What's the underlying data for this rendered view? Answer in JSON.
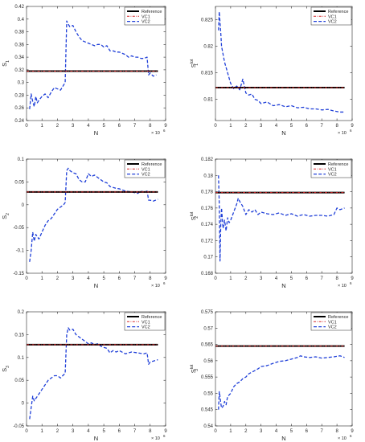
{
  "figure": {
    "panels": [
      {
        "xlabel": "N",
        "ylabel": "S",
        "ylabel_sub": "1",
        "ylabel_sup": "",
        "x_multiplier": "× 10",
        "x_exponent": "6"
      },
      {
        "xlabel": "N",
        "ylabel": "S",
        "ylabel_sub": "1",
        "ylabel_sup": "tot",
        "x_multiplier": "× 10",
        "x_exponent": "6"
      },
      {
        "xlabel": "N",
        "ylabel": "S",
        "ylabel_sub": "2",
        "ylabel_sup": "",
        "x_multiplier": "× 10",
        "x_exponent": "6"
      },
      {
        "xlabel": "N",
        "ylabel": "S",
        "ylabel_sub": "2",
        "ylabel_sup": "tot",
        "x_multiplier": "× 10",
        "x_exponent": "6"
      },
      {
        "xlabel": "N",
        "ylabel": "S",
        "ylabel_sub": "3",
        "ylabel_sup": "",
        "x_multiplier": "× 10",
        "x_exponent": "6"
      },
      {
        "xlabel": "N",
        "ylabel": "S",
        "ylabel_sub": "3",
        "ylabel_sup": "tot",
        "x_multiplier": "× 10",
        "x_exponent": "6"
      }
    ],
    "legend_labels": [
      "Reference",
      "VC1",
      "VC2"
    ],
    "colors": {
      "reference": "#000000",
      "vc1": "#d62728",
      "vc2": "#1f3fd8",
      "axis": "#262626"
    }
  },
  "chart_data": [
    {
      "type": "line",
      "xlabel": "N",
      "ylabel": "S1",
      "xlim": [
        0,
        9
      ],
      "ylim": [
        0.24,
        0.42
      ],
      "xticks": [
        0,
        1,
        2,
        3,
        4,
        5,
        6,
        7,
        8,
        9
      ],
      "yticks": [
        0.24,
        0.26,
        0.28,
        0.3,
        0.32,
        0.34,
        0.36,
        0.38,
        0.4,
        0.42
      ],
      "ytick_labels": [
        "0.24",
        "0.26",
        "0.28",
        "0.3",
        "0.32",
        "0.34",
        "0.36",
        "0.38",
        "0.4",
        "0.42"
      ],
      "legend": "top-right",
      "series": [
        {
          "name": "Reference",
          "style": "solid",
          "x": [
            0,
            8.5
          ],
          "y": [
            0.318,
            0.318
          ]
        },
        {
          "name": "VC1",
          "style": "dashdot",
          "x": [
            0,
            8.5
          ],
          "y": [
            0.318,
            0.318
          ]
        },
        {
          "name": "VC2",
          "style": "dashed",
          "x": [
            0.2,
            0.3,
            0.4,
            0.5,
            0.6,
            0.7,
            0.8,
            1.0,
            1.2,
            1.4,
            1.6,
            1.8,
            2.0,
            2.2,
            2.4,
            2.5,
            2.6,
            2.7,
            2.8,
            3.0,
            3.2,
            3.4,
            3.6,
            3.8,
            4.0,
            4.2,
            4.4,
            4.6,
            4.8,
            5.0,
            5.2,
            5.4,
            5.6,
            5.8,
            6.0,
            6.2,
            6.4,
            6.6,
            6.8,
            7.0,
            7.2,
            7.4,
            7.6,
            7.8,
            7.9,
            8.0,
            8.2,
            8.4
          ],
          "y": [
            0.258,
            0.282,
            0.27,
            0.262,
            0.278,
            0.268,
            0.272,
            0.278,
            0.282,
            0.276,
            0.285,
            0.292,
            0.29,
            0.288,
            0.296,
            0.3,
            0.397,
            0.392,
            0.388,
            0.39,
            0.38,
            0.372,
            0.366,
            0.364,
            0.362,
            0.36,
            0.358,
            0.36,
            0.36,
            0.356,
            0.358,
            0.35,
            0.35,
            0.348,
            0.348,
            0.346,
            0.344,
            0.34,
            0.342,
            0.34,
            0.34,
            0.338,
            0.338,
            0.34,
            0.312,
            0.315,
            0.31,
            0.312
          ]
        }
      ]
    },
    {
      "type": "line",
      "xlabel": "N",
      "ylabel": "S1 tot",
      "xlim": [
        0,
        9
      ],
      "ylim": [
        0.806,
        0.8275
      ],
      "xticks": [
        0,
        1,
        2,
        3,
        4,
        5,
        6,
        7,
        8,
        9
      ],
      "yticks": [
        0.81,
        0.815,
        0.82,
        0.825
      ],
      "ytick_labels": [
        "0.81",
        "0.815",
        "0.82",
        "0.825"
      ],
      "legend": "top-right",
      "series": [
        {
          "name": "Reference",
          "style": "solid",
          "x": [
            0,
            8.5
          ],
          "y": [
            0.8122,
            0.8122
          ]
        },
        {
          "name": "VC1",
          "style": "dashdot",
          "x": [
            0,
            8.5
          ],
          "y": [
            0.8122,
            0.8122
          ]
        },
        {
          "name": "VC2",
          "style": "dashed",
          "x": [
            0.2,
            0.25,
            0.3,
            0.35,
            0.4,
            0.5,
            0.6,
            0.7,
            0.8,
            0.9,
            1.0,
            1.2,
            1.4,
            1.6,
            1.8,
            2.0,
            2.2,
            2.4,
            2.6,
            2.8,
            3.0,
            3.4,
            3.8,
            4.2,
            4.6,
            5.0,
            5.4,
            5.8,
            6.2,
            6.6,
            7.0,
            7.4,
            7.8,
            8.2,
            8.5
          ],
          "y": [
            0.823,
            0.8265,
            0.8245,
            0.8225,
            0.82,
            0.8185,
            0.817,
            0.816,
            0.815,
            0.814,
            0.813,
            0.812,
            0.8125,
            0.8118,
            0.8138,
            0.8112,
            0.8108,
            0.811,
            0.81,
            0.8098,
            0.8092,
            0.8095,
            0.8088,
            0.809,
            0.8086,
            0.8088,
            0.8084,
            0.8085,
            0.8082,
            0.8082,
            0.808,
            0.8081,
            0.8078,
            0.8076,
            0.8076
          ]
        }
      ]
    },
    {
      "type": "line",
      "xlabel": "N",
      "ylabel": "S2",
      "xlim": [
        0,
        9
      ],
      "ylim": [
        -0.15,
        0.1
      ],
      "xticks": [
        0,
        1,
        2,
        3,
        4,
        5,
        6,
        7,
        8,
        9
      ],
      "yticks": [
        -0.15,
        -0.1,
        -0.05,
        0,
        0.05,
        0.1
      ],
      "ytick_labels": [
        "-0.15",
        "-0.1",
        "-0.05",
        "0",
        "0.05",
        "0.1"
      ],
      "legend": "top-right",
      "series": [
        {
          "name": "Reference",
          "style": "solid",
          "x": [
            0,
            8.5
          ],
          "y": [
            0.028,
            0.028
          ]
        },
        {
          "name": "VC1",
          "style": "dashdot",
          "x": [
            0,
            8.5
          ],
          "y": [
            0.028,
            0.028
          ]
        },
        {
          "name": "VC2",
          "style": "dashed",
          "x": [
            0.2,
            0.3,
            0.4,
            0.5,
            0.6,
            0.8,
            1.0,
            1.2,
            1.4,
            1.6,
            1.8,
            2.0,
            2.2,
            2.4,
            2.5,
            2.6,
            2.7,
            2.8,
            3.0,
            3.2,
            3.4,
            3.6,
            3.8,
            4.0,
            4.2,
            4.4,
            4.6,
            4.8,
            5.0,
            5.2,
            5.4,
            5.6,
            5.8,
            6.0,
            6.4,
            6.8,
            7.2,
            7.4,
            7.6,
            7.8,
            7.9,
            8.0,
            8.2,
            8.5
          ],
          "y": [
            -0.125,
            -0.1,
            -0.06,
            -0.08,
            -0.065,
            -0.075,
            -0.06,
            -0.045,
            -0.035,
            -0.03,
            -0.02,
            -0.01,
            -0.005,
            0.0,
            0.005,
            0.075,
            0.08,
            0.075,
            0.07,
            0.068,
            0.055,
            0.05,
            0.05,
            0.068,
            0.062,
            0.065,
            0.06,
            0.055,
            0.05,
            0.048,
            0.04,
            0.038,
            0.036,
            0.035,
            0.03,
            0.028,
            0.025,
            0.03,
            0.028,
            0.03,
            0.01,
            0.01,
            0.008,
            0.012
          ]
        }
      ]
    },
    {
      "type": "line",
      "xlabel": "N",
      "ylabel": "S2 tot",
      "xlim": [
        0,
        9
      ],
      "ylim": [
        0.168,
        0.182
      ],
      "xticks": [
        0,
        1,
        2,
        3,
        4,
        5,
        6,
        7,
        8,
        9
      ],
      "yticks": [
        0.168,
        0.17,
        0.172,
        0.174,
        0.176,
        0.178,
        0.18,
        0.182
      ],
      "ytick_labels": [
        "0.168",
        "0.17",
        "0.172",
        "0.174",
        "0.176",
        "0.178",
        "0.18",
        "0.182"
      ],
      "legend": "top-right",
      "series": [
        {
          "name": "Reference",
          "style": "solid",
          "x": [
            0,
            8.5
          ],
          "y": [
            0.1779,
            0.1779
          ]
        },
        {
          "name": "VC1",
          "style": "dashdot",
          "x": [
            0,
            8.5
          ],
          "y": [
            0.1779,
            0.1779
          ]
        },
        {
          "name": "VC2",
          "style": "dashed",
          "x": [
            0.2,
            0.25,
            0.3,
            0.35,
            0.4,
            0.5,
            0.6,
            0.7,
            0.8,
            0.9,
            1.0,
            1.2,
            1.4,
            1.5,
            1.6,
            1.8,
            2.0,
            2.2,
            2.4,
            2.6,
            2.8,
            3.0,
            3.4,
            3.8,
            4.2,
            4.6,
            5.0,
            5.4,
            5.8,
            6.2,
            6.6,
            7.0,
            7.4,
            7.8,
            8.0,
            8.2,
            8.5
          ],
          "y": [
            0.18,
            0.1765,
            0.1695,
            0.174,
            0.176,
            0.1735,
            0.1745,
            0.1732,
            0.1748,
            0.1742,
            0.1745,
            0.1755,
            0.1765,
            0.1772,
            0.1768,
            0.1762,
            0.1752,
            0.1758,
            0.1755,
            0.1758,
            0.1752,
            0.1755,
            0.1753,
            0.1752,
            0.1754,
            0.1751,
            0.1753,
            0.175,
            0.1752,
            0.175,
            0.1751,
            0.1751,
            0.175,
            0.1752,
            0.176,
            0.1758,
            0.176
          ]
        }
      ]
    },
    {
      "type": "line",
      "xlabel": "N",
      "ylabel": "S3",
      "xlim": [
        0,
        9
      ],
      "ylim": [
        -0.05,
        0.2
      ],
      "xticks": [
        0,
        1,
        2,
        3,
        4,
        5,
        6,
        7,
        8,
        9
      ],
      "yticks": [
        -0.05,
        0,
        0.05,
        0.1,
        0.15,
        0.2
      ],
      "ytick_labels": [
        "-0.05",
        "0",
        "0.05",
        "0.1",
        "0.15",
        "0.2"
      ],
      "legend": "top-right",
      "series": [
        {
          "name": "Reference",
          "style": "solid",
          "x": [
            0,
            8.5
          ],
          "y": [
            0.128,
            0.128
          ]
        },
        {
          "name": "VC1",
          "style": "dashdot",
          "x": [
            0,
            8.5
          ],
          "y": [
            0.128,
            0.128
          ]
        },
        {
          "name": "VC2",
          "style": "dashed",
          "x": [
            0.2,
            0.3,
            0.4,
            0.5,
            0.6,
            0.8,
            1.0,
            1.2,
            1.4,
            1.6,
            1.8,
            2.0,
            2.2,
            2.4,
            2.5,
            2.6,
            2.7,
            2.8,
            3.0,
            3.2,
            3.4,
            3.6,
            3.8,
            4.0,
            4.2,
            4.4,
            4.6,
            4.8,
            5.0,
            5.2,
            5.4,
            5.6,
            5.8,
            6.0,
            6.4,
            6.8,
            7.2,
            7.6,
            7.8,
            7.9,
            8.0,
            8.2,
            8.5
          ],
          "y": [
            -0.035,
            -0.01,
            0.015,
            0.005,
            0.01,
            0.02,
            0.03,
            0.04,
            0.05,
            0.055,
            0.06,
            0.06,
            0.055,
            0.062,
            0.065,
            0.15,
            0.165,
            0.16,
            0.162,
            0.15,
            0.145,
            0.14,
            0.135,
            0.13,
            0.132,
            0.128,
            0.13,
            0.125,
            0.122,
            0.12,
            0.11,
            0.115,
            0.112,
            0.115,
            0.108,
            0.112,
            0.11,
            0.108,
            0.11,
            0.085,
            0.09,
            0.092,
            0.095
          ]
        }
      ]
    },
    {
      "type": "line",
      "xlabel": "N",
      "ylabel": "S3 tot",
      "xlim": [
        0,
        9
      ],
      "ylim": [
        0.54,
        0.575
      ],
      "xticks": [
        0,
        1,
        2,
        3,
        4,
        5,
        6,
        7,
        8,
        9
      ],
      "yticks": [
        0.54,
        0.545,
        0.55,
        0.555,
        0.56,
        0.565,
        0.57,
        0.575
      ],
      "ytick_labels": [
        "0.54",
        "0.545",
        "0.55",
        "0.555",
        "0.56",
        "0.565",
        "0.57",
        "0.575"
      ],
      "legend": "top-right",
      "series": [
        {
          "name": "Reference",
          "style": "solid",
          "x": [
            0,
            8.5
          ],
          "y": [
            0.5645,
            0.5645
          ]
        },
        {
          "name": "VC1",
          "style": "dashdot",
          "x": [
            0,
            8.5
          ],
          "y": [
            0.5645,
            0.5645
          ]
        },
        {
          "name": "VC2",
          "style": "dashed",
          "x": [
            0.2,
            0.25,
            0.3,
            0.35,
            0.4,
            0.5,
            0.6,
            0.7,
            0.8,
            1.0,
            1.2,
            1.4,
            1.6,
            1.8,
            2.0,
            2.2,
            2.4,
            2.6,
            2.8,
            3.0,
            3.4,
            3.8,
            4.2,
            4.6,
            5.0,
            5.4,
            5.6,
            5.8,
            6.2,
            6.6,
            7.0,
            7.4,
            7.8,
            8.2,
            8.5
          ],
          "y": [
            0.545,
            0.5505,
            0.549,
            0.547,
            0.5455,
            0.546,
            0.5475,
            0.5465,
            0.549,
            0.55,
            0.552,
            0.553,
            0.5535,
            0.5545,
            0.555,
            0.556,
            0.5565,
            0.557,
            0.5575,
            0.5582,
            0.5585,
            0.5592,
            0.5598,
            0.56,
            0.5605,
            0.561,
            0.5615,
            0.5612,
            0.561,
            0.5612,
            0.5608,
            0.561,
            0.5612,
            0.5615,
            0.561
          ]
        }
      ]
    }
  ]
}
